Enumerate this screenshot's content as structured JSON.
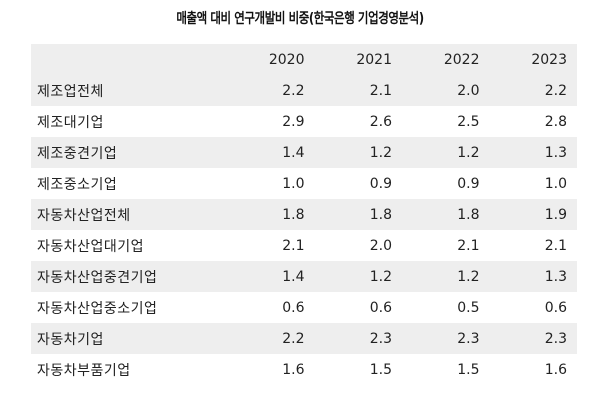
{
  "chart_data": {
    "type": "table",
    "title": "매출액 대비 연구개발비 비중(한국은행 기업경영분석)",
    "columns": [
      "2020",
      "2021",
      "2022",
      "2023"
    ],
    "rows": [
      {
        "label": "제조업전체",
        "values": [
          "2.2",
          "2.1",
          "2.0",
          "2.2"
        ]
      },
      {
        "label": "제조대기업",
        "values": [
          "2.9",
          "2.6",
          "2.5",
          "2.8"
        ]
      },
      {
        "label": "제조중견기업",
        "values": [
          "1.4",
          "1.2",
          "1.2",
          "1.3"
        ]
      },
      {
        "label": "제조중소기업",
        "values": [
          "1.0",
          "0.9",
          "0.9",
          "1.0"
        ]
      },
      {
        "label": "자동차산업전체",
        "values": [
          "1.8",
          "1.8",
          "1.8",
          "1.9"
        ]
      },
      {
        "label": "자동차산업대기업",
        "values": [
          "2.1",
          "2.0",
          "2.1",
          "2.1"
        ]
      },
      {
        "label": "자동차산업중견기업",
        "values": [
          "1.4",
          "1.2",
          "1.2",
          "1.3"
        ]
      },
      {
        "label": "자동차산업중소기업",
        "values": [
          "0.6",
          "0.6",
          "0.5",
          "0.6"
        ]
      },
      {
        "label": "자동차기업",
        "values": [
          "2.2",
          "2.3",
          "2.3",
          "2.3"
        ]
      },
      {
        "label": "자동차부품기업",
        "values": [
          "1.6",
          "1.5",
          "1.5",
          "1.6"
        ]
      }
    ]
  }
}
